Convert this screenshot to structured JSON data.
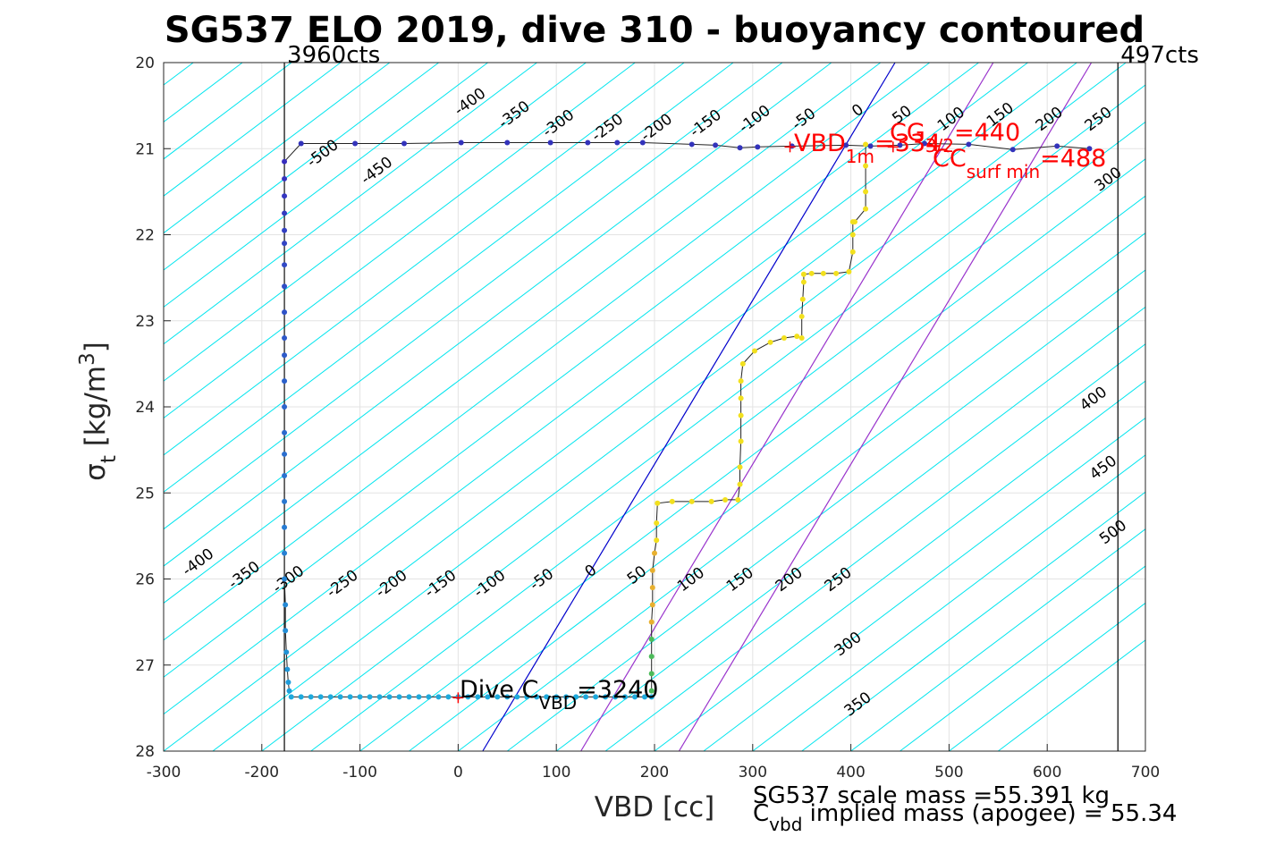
{
  "chart_data": {
    "type": "scatter",
    "title": "SG537 ELO 2019, dive 310 - buoyancy contoured",
    "xlabel": "VBD [cc]",
    "ylabel_main": "σ",
    "ylabel_sub": "t",
    "ylabel_unit": " [kg/m",
    "ylabel_sup": "3",
    "ylabel_close": "]",
    "xlim": [
      -300,
      700
    ],
    "ylim": [
      20,
      28
    ],
    "y_reversed": true,
    "grid": true,
    "xticks": [
      -300,
      -200,
      -100,
      0,
      100,
      200,
      300,
      400,
      500,
      600,
      700
    ],
    "xtick_labels": [
      "-300",
      "-200",
      "-100",
      "0",
      "100",
      "200",
      "300",
      "400",
      "500",
      "600",
      "700"
    ],
    "yticks": [
      20,
      21,
      22,
      23,
      24,
      25,
      26,
      27,
      28
    ],
    "ytick_labels": [
      "20",
      "21",
      "22",
      "23",
      "24",
      "25",
      "26",
      "27",
      "28"
    ],
    "counts_left": "3960cts",
    "counts_right": "497cts",
    "counts_left_x": -177,
    "counts_right_x": 672,
    "contour_slope_per_sigma": -117,
    "contour_levels": [
      -500,
      -450,
      -400,
      -350,
      -300,
      -250,
      -200,
      -150,
      -100,
      -50,
      0,
      50,
      100,
      150,
      200,
      250,
      300,
      400,
      450,
      500
    ],
    "contour_labels_top": [
      {
        "level": -500,
        "text": "-500",
        "x": -135,
        "y": 21.1
      },
      {
        "level": -450,
        "text": "-450",
        "x": -80,
        "y": 21.3
      },
      {
        "level": -400,
        "text": "-400",
        "x": 15,
        "y": 20.5
      },
      {
        "level": -350,
        "text": "-350",
        "x": 60,
        "y": 20.65
      },
      {
        "level": -300,
        "text": "-300",
        "x": 105,
        "y": 20.75
      },
      {
        "level": -250,
        "text": "-250",
        "x": 155,
        "y": 20.8
      },
      {
        "level": -200,
        "text": "-200",
        "x": 205,
        "y": 20.8
      },
      {
        "level": -150,
        "text": "-150",
        "x": 255,
        "y": 20.75
      },
      {
        "level": -100,
        "text": "-100",
        "x": 305,
        "y": 20.7
      },
      {
        "level": -50,
        "text": "-50",
        "x": 355,
        "y": 20.7
      },
      {
        "level": 0,
        "text": "0",
        "x": 410,
        "y": 20.6
      },
      {
        "level": 50,
        "text": "50",
        "x": 455,
        "y": 20.65
      },
      {
        "level": 100,
        "text": "100",
        "x": 505,
        "y": 20.7
      },
      {
        "level": 150,
        "text": "150",
        "x": 555,
        "y": 20.65
      },
      {
        "level": 200,
        "text": "200",
        "x": 605,
        "y": 20.7
      },
      {
        "level": 250,
        "text": "250",
        "x": 655,
        "y": 20.7
      },
      {
        "level": 300,
        "text": "300",
        "x": 665,
        "y": 21.4
      }
    ],
    "contour_labels_bottom": [
      {
        "level": -400,
        "text": "-400",
        "x": -262,
        "y": 25.85
      },
      {
        "level": -350,
        "text": "-350",
        "x": -215,
        "y": 26.0
      },
      {
        "level": -300,
        "text": "-300",
        "x": -170,
        "y": 26.05
      },
      {
        "level": -250,
        "text": "-250",
        "x": -115,
        "y": 26.1
      },
      {
        "level": -200,
        "text": "-200",
        "x": -65,
        "y": 26.1
      },
      {
        "level": -150,
        "text": "-150",
        "x": -15,
        "y": 26.1
      },
      {
        "level": -100,
        "text": "-100",
        "x": 35,
        "y": 26.1
      },
      {
        "level": -50,
        "text": "-50",
        "x": 88,
        "y": 26.05
      },
      {
        "level": 0,
        "text": "0",
        "x": 138,
        "y": 25.95
      },
      {
        "level": 50,
        "text": "50",
        "x": 185,
        "y": 26.0
      },
      {
        "level": 100,
        "text": "100",
        "x": 240,
        "y": 26.05
      },
      {
        "level": 150,
        "text": "150",
        "x": 290,
        "y": 26.05
      },
      {
        "level": 200,
        "text": "200",
        "x": 340,
        "y": 26.05
      },
      {
        "level": 250,
        "text": "250",
        "x": 390,
        "y": 26.05
      },
      {
        "level": 300,
        "text": "300",
        "x": 400,
        "y": 26.8
      },
      {
        "level": 350,
        "text": "350",
        "x": 410,
        "y": 27.5
      },
      {
        "level": 400,
        "text": "400",
        "x": 650,
        "y": 23.95
      },
      {
        "level": 450,
        "text": "450",
        "x": 660,
        "y": 24.75
      },
      {
        "level": 500,
        "text": "500",
        "x": 670,
        "y": 25.5
      }
    ],
    "special_lines": [
      {
        "name": "0",
        "color": "#0000cc",
        "x_bottom": 25,
        "x_top": 445
      },
      {
        "name": "purple-1",
        "color": "#9933cc",
        "x_bottom": 125,
        "x_top": 545
      },
      {
        "name": "purple-2",
        "color": "#9933cc",
        "x_bottom": 225,
        "x_top": 645
      }
    ],
    "series": [
      {
        "role": "dive",
        "x": [
          -160,
          -105,
          -55,
          3,
          50,
          94,
          132,
          162,
          188,
          238,
          262,
          287,
          305,
          340,
          395,
          420,
          450,
          475,
          520,
          565,
          610,
          643
        ],
        "y": [
          20.94,
          20.94,
          20.94,
          20.93,
          20.93,
          20.93,
          20.93,
          20.93,
          20.93,
          20.95,
          20.96,
          20.99,
          20.98,
          20.97,
          20.96,
          20.97,
          20.96,
          20.94,
          20.95,
          21.01,
          20.97,
          21.0
        ]
      },
      {
        "role": "descent-vertical",
        "x": [
          -177,
          -177,
          -177,
          -177,
          -177,
          -177,
          -177,
          -177,
          -177,
          -177,
          -177,
          -177,
          -177,
          -177,
          -177,
          -177,
          -177,
          -177,
          -177,
          -177,
          -176,
          -176,
          -175,
          -174,
          -173,
          -172
        ],
        "y": [
          21.15,
          21.35,
          21.55,
          21.75,
          21.95,
          22.1,
          22.35,
          22.6,
          22.9,
          23.2,
          23.4,
          23.7,
          24.0,
          24.3,
          24.55,
          24.8,
          25.1,
          25.4,
          25.7,
          26.0,
          26.3,
          26.6,
          26.85,
          27.05,
          27.2,
          27.3
        ]
      },
      {
        "role": "bottom",
        "x": [
          -170,
          -160,
          -150,
          -140,
          -130,
          -120,
          -110,
          -100,
          -90,
          -80,
          -70,
          -60,
          -50,
          -40,
          -30,
          -20,
          -10,
          0,
          10,
          20,
          30,
          40,
          50,
          60,
          70,
          80,
          90,
          100,
          110,
          120,
          130,
          140,
          150,
          160,
          170,
          180,
          190,
          197
        ],
        "y": [
          27.37,
          27.37,
          27.37,
          27.37,
          27.37,
          27.37,
          27.37,
          27.37,
          27.37,
          27.37,
          27.37,
          27.37,
          27.37,
          27.37,
          27.37,
          27.37,
          27.37,
          27.37,
          27.37,
          27.37,
          27.37,
          27.37,
          27.37,
          27.37,
          27.37,
          27.37,
          27.37,
          27.37,
          27.37,
          27.37,
          27.37,
          27.37,
          27.37,
          27.37,
          27.37,
          27.37,
          27.37,
          27.37
        ]
      },
      {
        "role": "climb",
        "x": [
          197,
          197,
          197,
          197,
          197,
          198,
          198,
          198,
          200,
          202,
          202,
          203,
          218,
          238,
          258,
          272,
          285,
          287,
          287,
          288,
          288,
          288,
          288,
          290,
          302,
          318,
          332,
          345,
          350,
          350,
          351,
          352,
          352,
          360,
          372,
          385,
          398,
          402,
          402,
          402,
          404,
          415,
          415,
          415,
          415
        ],
        "y": [
          27.3,
          27.1,
          26.9,
          26.7,
          26.5,
          26.3,
          26.1,
          25.9,
          25.7,
          25.55,
          25.35,
          25.12,
          25.1,
          25.1,
          25.1,
          25.08,
          25.08,
          24.9,
          24.7,
          24.4,
          24.1,
          23.9,
          23.7,
          23.5,
          23.35,
          23.25,
          23.2,
          23.18,
          23.2,
          22.95,
          22.75,
          22.55,
          22.46,
          22.45,
          22.45,
          22.45,
          22.43,
          22.2,
          22.0,
          21.85,
          21.85,
          21.7,
          21.5,
          21.2,
          20.95
        ]
      }
    ],
    "markers": [
      {
        "name": "dive-c-vbd",
        "x": 0,
        "y": 27.38
      },
      {
        "name": "vbd-1m",
        "x": 338,
        "y": 20.98
      },
      {
        "name": "cg-marker",
        "x": 443,
        "y": 20.98
      }
    ],
    "annotations": {
      "vbd_1m_main": "VBD",
      "vbd_1m_sub": "1m",
      "vbd_1m_tail": "=334",
      "cg_main": "CG",
      "cg_sub": "3/2",
      "cg_tail": "=440",
      "cc_main": "CC",
      "cc_sub": "surf min",
      "cc_tail": "=488",
      "dive_c_main": "Dive C",
      "dive_c_sub": "VBD",
      "dive_c_tail": "=3240"
    },
    "footer": {
      "line1": "SG537 scale mass =55.391 kg",
      "line2_main": "C",
      "line2_sub": "vbd",
      "line2_tail": " implied mass (apogee) = 55.34"
    }
  }
}
